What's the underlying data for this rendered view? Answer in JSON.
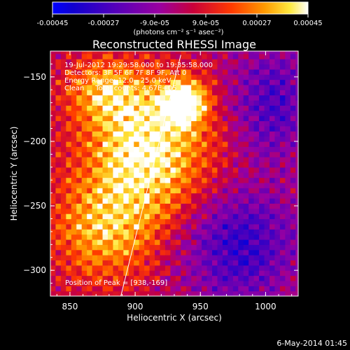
{
  "chart_data": {
    "type": "heatmap",
    "title": "Reconstructed RHESSI Image",
    "xlabel": "Heliocentric X (arcsec)",
    "ylabel": "Heliocentric Y (arcsec)",
    "xlim": [
      835,
      1025
    ],
    "ylim": [
      -320,
      -130
    ],
    "x_ticks": [
      850,
      900,
      950,
      1000
    ],
    "y_ticks": [
      -300,
      -250,
      -200,
      -150
    ],
    "colorbar": {
      "ticks": [
        -0.00045,
        -0.00027,
        -9e-05,
        9e-05,
        0.00027,
        0.00045
      ],
      "tick_labels": [
        "-0.00045",
        "-0.00027",
        "-9.0e-05",
        "9.0e-05",
        "0.00027",
        "0.00045"
      ],
      "units": "(photons cm⁻² s⁻¹ asec⁻²)",
      "range": [
        -0.00045,
        0.00045
      ],
      "colors": [
        "#0000ff",
        "#ff0000",
        "#ffff00",
        "#ffffff"
      ]
    },
    "annotations": [
      "19-Jul-2012 19:29:58.000 to 19:35:58.000",
      "Detectors: 3F 5F 6F 7F 8F 9F, Att 0",
      "Energy Range: 12.0 - 25.0 keV",
      "Clean     Total counts: 4.67E+05"
    ],
    "peak_label": "Position of Peak = [938,-169]",
    "peak": [
      938,
      -169
    ],
    "limb_line": [
      [
        889,
        -320
      ],
      [
        935,
        -133
      ]
    ],
    "sources": [
      {
        "x": 910,
        "y": -205,
        "amp": 0.00045,
        "sx": 35,
        "sy": 38
      },
      {
        "x": 938,
        "y": -169,
        "amp": 0.00045,
        "sx": 12,
        "sy": 12
      },
      {
        "x": 875,
        "y": -270,
        "amp": 0.0003,
        "sx": 30,
        "sy": 30
      },
      {
        "x": 875,
        "y": -160,
        "amp": 0.00025,
        "sx": 22,
        "sy": 18
      },
      {
        "x": 980,
        "y": -280,
        "amp": -0.0003,
        "sx": 30,
        "sy": 30
      },
      {
        "x": 1005,
        "y": -170,
        "amp": -0.00025,
        "sx": 22,
        "sy": 30
      }
    ]
  },
  "footer_date": "6-May-2014 01:45"
}
